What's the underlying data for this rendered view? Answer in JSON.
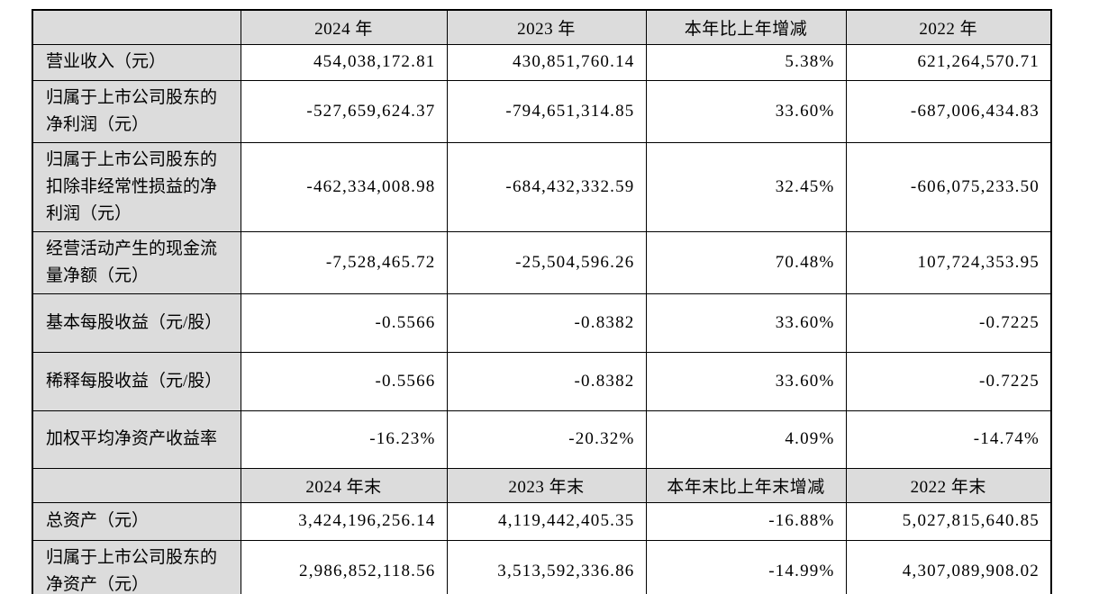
{
  "colors": {
    "header_background": "#dcdcdc",
    "label_background": "#dcdcdc",
    "cell_background": "#ffffff",
    "border": "#000000",
    "text": "#000000"
  },
  "table": {
    "sections": [
      {
        "header": [
          "",
          "2024 年",
          "2023 年",
          "本年比上年增减",
          "2022 年"
        ],
        "rows": [
          {
            "label": "营业收入（元）",
            "values": [
              "454,038,172.81",
              "430,851,760.14",
              "5.38%",
              "621,264,570.71"
            ]
          },
          {
            "label": "归属于上市公司股东的净利润（元）",
            "values": [
              "-527,659,624.37",
              "-794,651,314.85",
              "33.60%",
              "-687,006,434.83"
            ]
          },
          {
            "label": "归属于上市公司股东的扣除非经常性损益的净利润（元）",
            "values": [
              "-462,334,008.98",
              "-684,432,332.59",
              "32.45%",
              "-606,075,233.50"
            ]
          },
          {
            "label": "经营活动产生的现金流量净额（元）",
            "values": [
              "-7,528,465.72",
              "-25,504,596.26",
              "70.48%",
              "107,724,353.95"
            ]
          },
          {
            "label": "基本每股收益（元/股）",
            "values": [
              "-0.5566",
              "-0.8382",
              "33.60%",
              "-0.7225"
            ]
          },
          {
            "label": "稀释每股收益（元/股）",
            "values": [
              "-0.5566",
              "-0.8382",
              "33.60%",
              "-0.7225"
            ]
          },
          {
            "label": "加权平均净资产收益率",
            "values": [
              "-16.23%",
              "-20.32%",
              "4.09%",
              "-14.74%"
            ]
          }
        ]
      },
      {
        "header": [
          "",
          "2024 年末",
          "2023 年末",
          "本年末比上年末增减",
          "2022 年末"
        ],
        "rows": [
          {
            "label": "总资产（元）",
            "values": [
              "3,424,196,256.14",
              "4,119,442,405.35",
              "-16.88%",
              "5,027,815,640.85"
            ]
          },
          {
            "label": "归属于上市公司股东的净资产（元）",
            "values": [
              "2,986,852,118.56",
              "3,513,592,336.86",
              "-14.99%",
              "4,307,089,908.02"
            ]
          }
        ]
      }
    ]
  }
}
